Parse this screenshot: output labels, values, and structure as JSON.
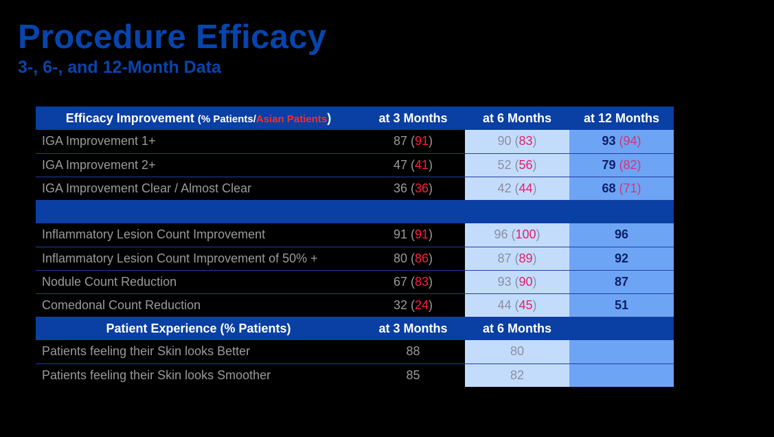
{
  "title": "Procedure Efficacy",
  "subtitle": "3-, 6-, and 12-Month Data",
  "efficacy_header": {
    "label": "Efficacy Improvement",
    "open": "(",
    "pct_patients": "% Patients/",
    "asian_patients": "Asian Patients",
    "close": ")",
    "col_3": "at 3 Months",
    "col_6": "at 6 Months",
    "col_12": "at 12 Months"
  },
  "efficacy_rows_a": [
    {
      "name": "IGA Improvement 1+",
      "m3": "87",
      "m3a": "91",
      "m6": "90",
      "m6a": "83",
      "m12": "93",
      "m12a": "94"
    },
    {
      "name": "IGA Improvement 2+",
      "m3": "47",
      "m3a": "41",
      "m6": "52",
      "m6a": "56",
      "m12": "79",
      "m12a": "82"
    },
    {
      "name": "IGA Improvement Clear / Almost Clear",
      "m3": "36",
      "m3a": "36",
      "m6": "42",
      "m6a": "44",
      "m12": "68",
      "m12a": "71"
    }
  ],
  "efficacy_rows_b": [
    {
      "name": "Inflammatory Lesion Count Improvement",
      "m3": "91",
      "m3a": "91",
      "m6": "96",
      "m6a": "100",
      "m12": "96"
    },
    {
      "name": "Inflammatory Lesion Count Improvement of 50% +",
      "m3": "80",
      "m3a": "86",
      "m6": "87",
      "m6a": "89",
      "m12": "92"
    },
    {
      "name": "Nodule Count Reduction",
      "m3": "67",
      "m3a": "83",
      "m6": "93",
      "m6a": "90",
      "m12": "87"
    },
    {
      "name": "Comedonal Count Reduction",
      "m3": "32",
      "m3a": "24",
      "m6": "44",
      "m6a": "45",
      "m12": "51"
    }
  ],
  "experience_header": {
    "label": "Patient Experience (% Patients)",
    "col_3": "at 3 Months",
    "col_6": "at 6 Months"
  },
  "experience_rows": [
    {
      "name": "Patients feeling their Skin looks Better",
      "m3": "88",
      "m6": "80"
    },
    {
      "name": "Patients feeling their Skin looks Smoother",
      "m3": "85",
      "m6": "82"
    }
  ]
}
